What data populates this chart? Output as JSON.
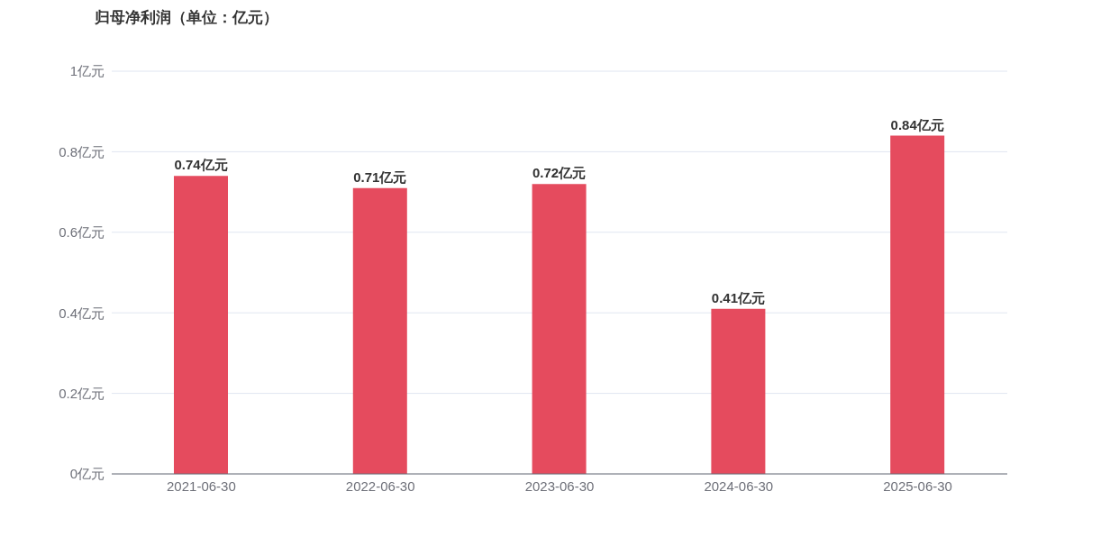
{
  "chart_data": {
    "type": "bar",
    "title": "归母净利润（单位：亿元）",
    "categories": [
      "2021-06-30",
      "2022-06-30",
      "2023-06-30",
      "2024-06-30",
      "2025-06-30"
    ],
    "values": [
      0.74,
      0.71,
      0.72,
      0.41,
      0.84
    ],
    "value_labels": [
      "0.74亿元",
      "0.71亿元",
      "0.72亿元",
      "0.41亿元",
      "0.84亿元"
    ],
    "color": "#e54b5e",
    "ylim": [
      0,
      1
    ],
    "yticks": [
      {
        "value": 0,
        "label": "0亿元"
      },
      {
        "value": 0.2,
        "label": "0.2亿元"
      },
      {
        "value": 0.4,
        "label": "0.4亿元"
      },
      {
        "value": 0.6,
        "label": "0.6亿元"
      },
      {
        "value": 0.8,
        "label": "0.8亿元"
      },
      {
        "value": 1,
        "label": "1亿元"
      }
    ],
    "grid": "y"
  }
}
